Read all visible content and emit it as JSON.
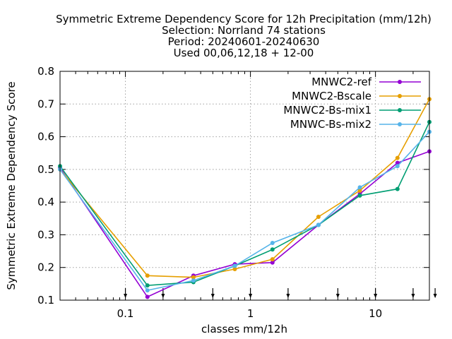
{
  "chart_data": {
    "type": "line",
    "title_lines": [
      "Symmetric Extreme Dependency Score  for 12h Precipitation (mm/12h)",
      "Selection: Norrland     74 stations",
      "Period: 20240601-20240630",
      "Used 00,06,12,18 + 12-00"
    ],
    "xlabel": "classes mm/12h",
    "ylabel": "Symmetric Extreme Dependency Score",
    "x_scale": "log",
    "xlim": [
      0.03,
      27
    ],
    "ylim": [
      0.1,
      0.8
    ],
    "grid": true,
    "legend_position": "top-right",
    "x_ticks": [
      {
        "value": 0.1,
        "label": "0.1"
      },
      {
        "value": 1,
        "label": "1"
      },
      {
        "value": 10,
        "label": "10"
      }
    ],
    "y_ticks": [
      {
        "value": 0.1,
        "label": "0.1"
      },
      {
        "value": 0.2,
        "label": "0.2"
      },
      {
        "value": 0.3,
        "label": "0.3"
      },
      {
        "value": 0.4,
        "label": "0.4"
      },
      {
        "value": 0.5,
        "label": "0.5"
      },
      {
        "value": 0.6,
        "label": "0.6"
      },
      {
        "value": 0.7,
        "label": "0.7"
      },
      {
        "value": 0.8,
        "label": "0.8"
      }
    ],
    "threshold_arrows": [
      0.1,
      0.2,
      0.5,
      1,
      2,
      5,
      10,
      20,
      30
    ],
    "x": [
      0.03,
      0.15,
      0.35,
      0.75,
      1.5,
      3.5,
      7.5,
      15,
      27
    ],
    "series": [
      {
        "name": "MNWC2-ref",
        "color": "#9400d3",
        "values": [
          0.505,
          0.11,
          0.175,
          0.21,
          0.215,
          0.33,
          0.425,
          0.52,
          0.555
        ]
      },
      {
        "name": "MNWC2-Bscale",
        "color": "#e69f00",
        "values": [
          0.5,
          0.175,
          0.17,
          0.195,
          0.225,
          0.355,
          0.435,
          0.535,
          0.715
        ]
      },
      {
        "name": "MNWC2-Bs-mix1",
        "color": "#009e73",
        "values": [
          0.51,
          0.145,
          0.155,
          0.205,
          0.255,
          0.33,
          0.42,
          0.44,
          0.645
        ]
      },
      {
        "name": "MNWC-Bs-mix2",
        "color": "#56b4e9",
        "values": [
          0.5,
          0.13,
          0.16,
          0.205,
          0.275,
          0.33,
          0.445,
          0.51,
          0.615
        ]
      }
    ]
  }
}
